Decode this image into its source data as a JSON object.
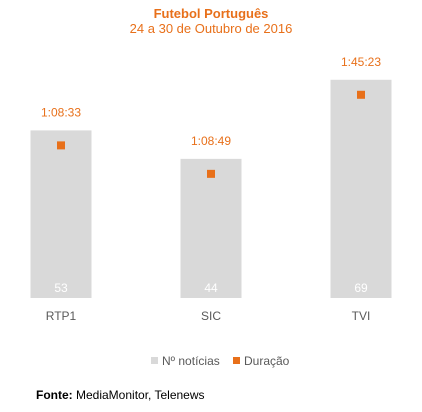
{
  "chart_data": {
    "type": "bar",
    "title": "Futebol Português",
    "subtitle": "24 a 30 de Outubro de 2016",
    "categories": [
      "RTP1",
      "SIC",
      "TVI"
    ],
    "series": [
      {
        "name": "Nº notícias",
        "values": [
          53,
          44,
          69
        ],
        "color": "#d9d9d9",
        "marker": "bar"
      },
      {
        "name": "Duração",
        "values": [
          "1:08:33",
          "1:08:49",
          "1:45:23"
        ],
        "color": "#e8701a",
        "marker": "square"
      }
    ],
    "ylim": [
      0,
      80
    ],
    "grid": false,
    "legend": "bottom"
  },
  "source": {
    "label": "Fonte:",
    "text": "MediaMonitor, Telenews"
  }
}
